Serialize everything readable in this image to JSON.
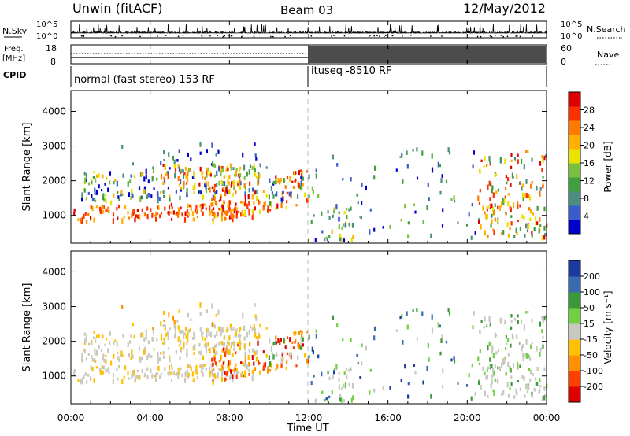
{
  "header": {
    "station": "Unwin (fitACF)",
    "beam": "Beam 03",
    "date": "12/May/2012"
  },
  "top_panels": {
    "nsky_label": "N.Sky",
    "nsky_ticks": [
      "10^5",
      "10^0"
    ],
    "nsearch_label": "N.Search",
    "nsearch_ticks": [
      "10^5",
      "10^0"
    ],
    "freq_label": "Freq.",
    "freq_unit": "[MHz]",
    "freq_ticks": [
      "18",
      "8"
    ],
    "nave_label": "Nave",
    "nave_ticks": [
      "60",
      "0"
    ],
    "cpid_label": "CPID",
    "cpid_segments": [
      {
        "label": "normal (fast stereo) 153 RF",
        "start_hour": 0
      },
      {
        "label": "ituseq -8510 RF",
        "start_hour": 12
      }
    ]
  },
  "chart_data": [
    {
      "type": "heatmap",
      "title": "Power",
      "ylabel": "Slant Range [km]",
      "xlabel": "",
      "x_range_hours": [
        0,
        24
      ],
      "ylim": [
        200,
        4600
      ],
      "y_ticks": [
        1000,
        2000,
        3000,
        4000
      ],
      "colorbar": {
        "label": "Power [dB]",
        "ticks": [
          "28",
          "24",
          "20",
          "16",
          "12",
          "8",
          "4"
        ],
        "colors": [
          "#0000cc",
          "#3a5ccc",
          "#4c8f80",
          "#3f9f3f",
          "#7ac040",
          "#e8e400",
          "#ffb000",
          "#ff7a00",
          "#ff3000",
          "#e00000"
        ]
      }
    },
    {
      "type": "heatmap",
      "title": "Velocity",
      "ylabel": "Slant Range [km]",
      "xlabel": "Time UT",
      "x_range_hours": [
        0,
        24
      ],
      "x_ticks": [
        "00:00",
        "04:00",
        "08:00",
        "12:00",
        "16:00",
        "20:00",
        "00:00"
      ],
      "ylim": [
        200,
        4600
      ],
      "y_ticks": [
        1000,
        2000,
        3000,
        4000
      ],
      "colorbar": {
        "label": "Velocity [m s⁻¹]",
        "ticks": [
          "200",
          "100",
          "50",
          "15",
          "-15",
          "-50",
          "-100",
          "-200"
        ],
        "colors": [
          "#e00000",
          "#ff4000",
          "#ff9000",
          "#ffc000",
          "#c8c8c0",
          "#70d040",
          "#3a9a3a",
          "#3a6ab0",
          "#1a3aa0"
        ]
      }
    }
  ]
}
